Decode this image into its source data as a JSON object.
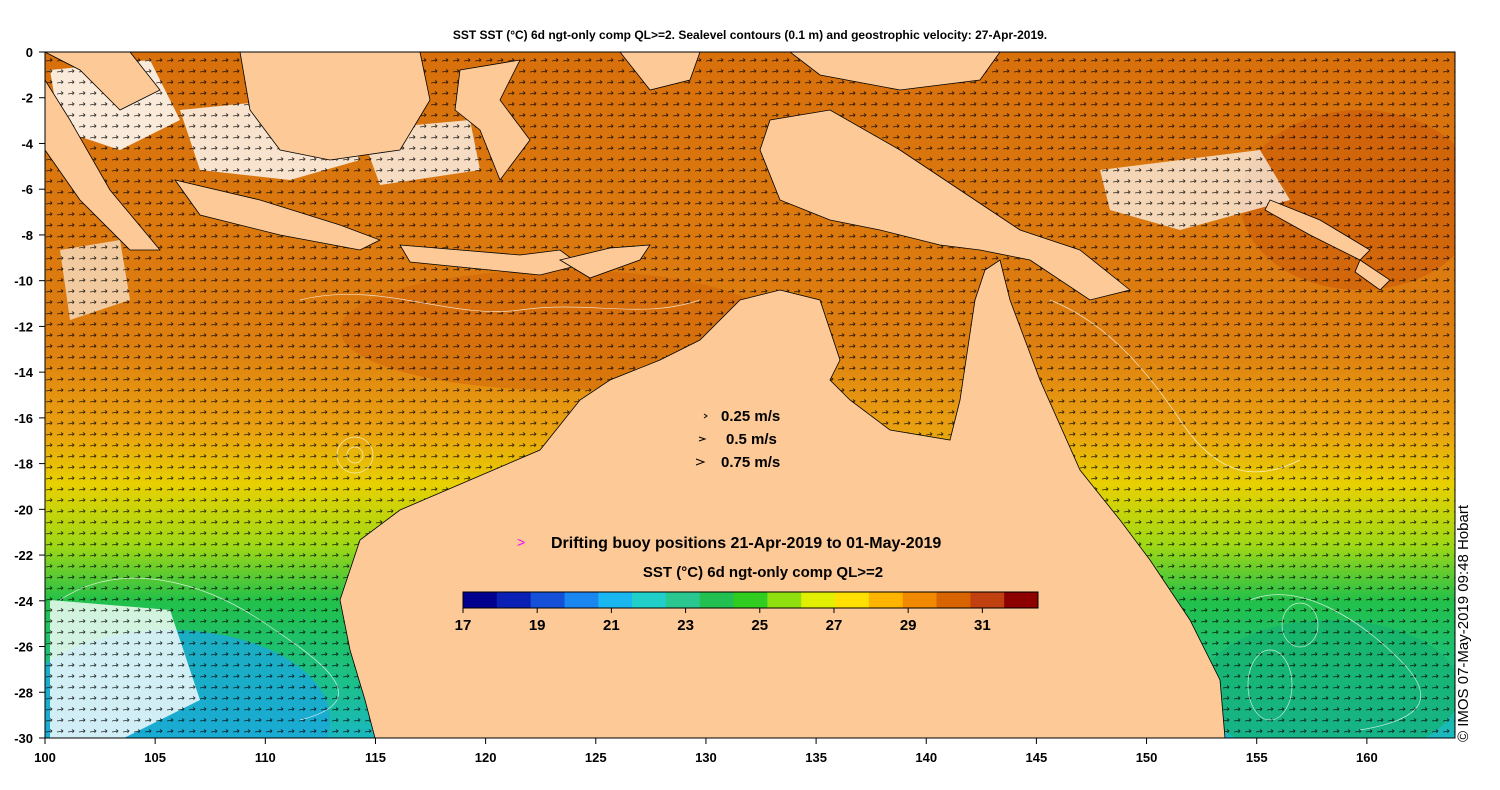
{
  "title": "SST SST (°C) 6d ngt-only comp QL>=2. Sealevel contours (0.1 m) and geostrophic velocity: 27-Apr-2019.",
  "axes": {
    "x_ticks": [
      "100",
      "105",
      "110",
      "115",
      "120",
      "125",
      "130",
      "135",
      "140",
      "145",
      "150",
      "155",
      "160"
    ],
    "y_ticks": [
      "0",
      "-2",
      "-4",
      "-6",
      "-8",
      "-10",
      "-12",
      "-14",
      "-16",
      "-18",
      "-20",
      "-22",
      "-24",
      "-26",
      "-28",
      "-30"
    ],
    "lon_range": [
      100,
      164
    ],
    "lat_range": [
      -30,
      0
    ]
  },
  "velocity_legend": {
    "items": [
      "0.25 m/s",
      "0.5 m/s",
      "0.75 m/s"
    ]
  },
  "buoy_legend": {
    "marker": ">",
    "label": "Drifting buoy positions 21-Apr-2019 to 01-May-2019",
    "marker_color": "#ff00ff"
  },
  "colorbar": {
    "title": "SST (°C) 6d ngt-only comp QL>=2",
    "ticks": [
      "17",
      "19",
      "21",
      "23",
      "25",
      "27",
      "29",
      "31"
    ],
    "range": [
      17,
      32.5
    ],
    "colors": [
      "#00008f",
      "#0a1fb3",
      "#1450d8",
      "#1a86ef",
      "#1ab6f0",
      "#20d0c8",
      "#2ac890",
      "#22c050",
      "#30cc20",
      "#90e010",
      "#e0f000",
      "#ffe000",
      "#ffb400",
      "#f08800",
      "#d86400",
      "#c04010",
      "#8c0000"
    ]
  },
  "credit": "© IMOS 07-May-2019 09:48 Hobart",
  "colors": {
    "land": "#fcc997",
    "ocean_warm": "#d8700c",
    "ocean_mid": "#e99a16",
    "ocean_yellow": "#e4e200",
    "ocean_green": "#22c04a",
    "ocean_cyan": "#1ec0b0",
    "cloud": "#ffffff"
  }
}
